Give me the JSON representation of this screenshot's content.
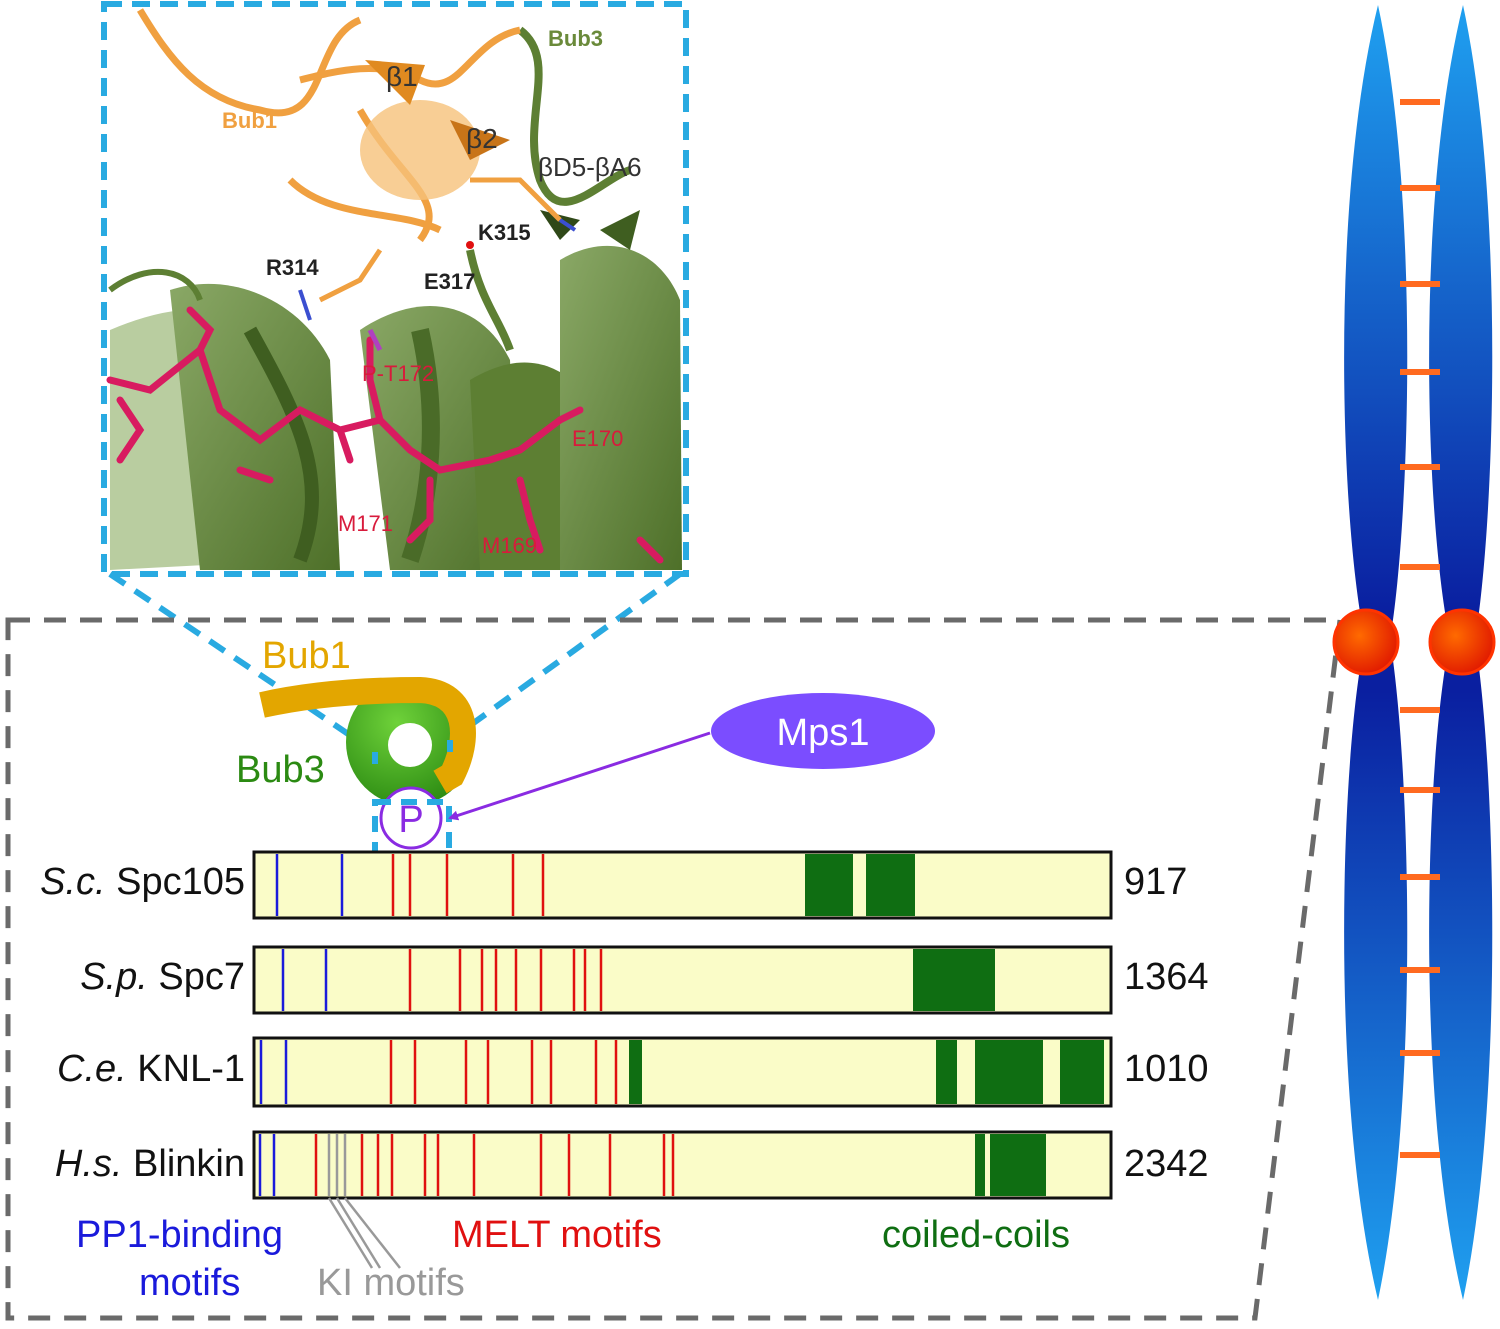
{
  "structure": {
    "labels": {
      "bub3": "Bub3",
      "bub1": "Bub1",
      "beta1": "β1",
      "beta2": "β2",
      "loop": "βD5-βA6",
      "k315": "K315",
      "r314": "R314",
      "e317": "E317",
      "pt172": "P-T172",
      "e170": "E170",
      "m171": "M171",
      "m169": "M169"
    },
    "colors": {
      "bub1": "#f0a040",
      "bub3": "#5d7f33",
      "peptide": "#d81b60",
      "inset_border": "#29aae1"
    }
  },
  "schematic": {
    "bub1_label": "Bub1",
    "bub3_label": "Bub3",
    "phospho_label": "P",
    "kinase_label": "Mps1",
    "colors": {
      "bub1": "#e3a600",
      "bub3": "#3a9a1a",
      "kinase": "#7b4dff",
      "arrow": "#8a2be2"
    }
  },
  "tracks": [
    {
      "species": "S.c.",
      "protein": "Spc105",
      "length": "917"
    },
    {
      "species": "S.p.",
      "protein": "Spc7",
      "length": "1364"
    },
    {
      "species": "C.e.",
      "protein": "KNL-1",
      "length": "1010"
    },
    {
      "species": "H.s.",
      "protein": "Blinkin",
      "length": "2342"
    }
  ],
  "legend": {
    "pp1_line1": "PP1-binding",
    "pp1_line2": "motifs",
    "ki": "KI motifs",
    "melt": "MELT motifs",
    "coils": "coiled-coils",
    "colors": {
      "pp1": "#1a1adb",
      "ki": "#999999",
      "melt": "#e01010",
      "coils": "#0f6e12",
      "track_fill": "#fafcc8"
    }
  }
}
